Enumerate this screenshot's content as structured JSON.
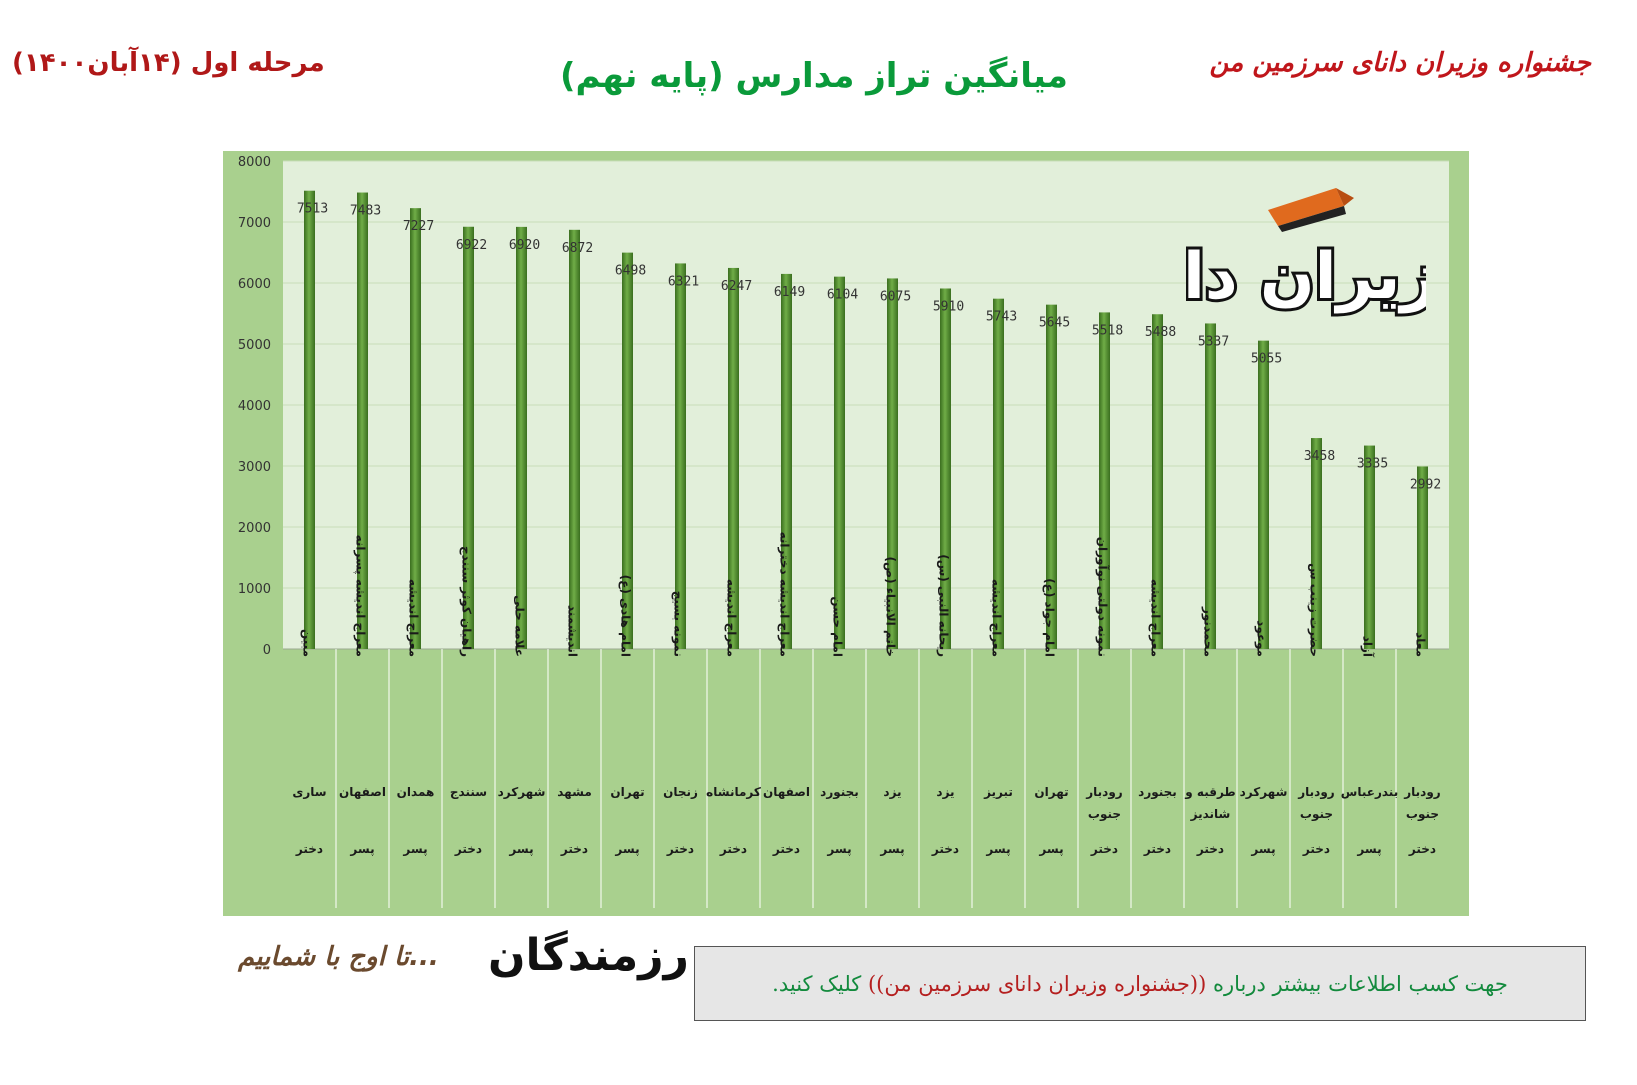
{
  "header": {
    "left": "مرحله اول (۱۴آبان۱۴۰۰)",
    "title": "میانگین تراز مدارس (پایه نهم)",
    "right": "جشنواره وزیران دانای سرزمین من"
  },
  "logo": {
    "text": "وزیران دانا",
    "icon": "book-mortarboard-icon"
  },
  "footer": {
    "slogan": "تا اوج با شماییم...",
    "brand": "رزمندگان",
    "info_pre": "جهت کسب اطلاعات بیشتر درباره",
    "info_link": "((جشنواره وزیران دانای سرزمین من))",
    "info_post": "کلیک کنید."
  },
  "colors": {
    "chart_bg": "#a9d08e",
    "plot_bg": "#e2efda",
    "bar_light": "#70ad47",
    "bar_dark": "#3a6e1f",
    "title_green": "#0a9a3a",
    "header_red": "#c0161b"
  },
  "chart_data": {
    "type": "bar",
    "ylim": [
      0,
      8000
    ],
    "yticks": [
      0,
      1000,
      2000,
      3000,
      4000,
      5000,
      6000,
      7000,
      8000
    ],
    "grid": true,
    "categories": [
      {
        "school": "مبین",
        "city": "ساری",
        "gender": "دختر"
      },
      {
        "school": "معراج اندیشه پسرانه",
        "city": "اصفهان",
        "gender": "پسر"
      },
      {
        "school": "معراج اندیشه",
        "city": "همدان",
        "gender": "پسر"
      },
      {
        "school": "راهیان کوثر سنندج",
        "city": "سنندج",
        "gender": "دختر"
      },
      {
        "school": "علامه حلی",
        "city": "شهرکرد",
        "gender": "پسر"
      },
      {
        "school": "اندیشمند",
        "city": "مشهد",
        "gender": "دختر"
      },
      {
        "school": "امام هادی (ع)",
        "city": "تهران",
        "gender": "پسر"
      },
      {
        "school": "نمونه بسیج",
        "city": "زنجان",
        "gender": "دختر"
      },
      {
        "school": "معراج اندیشه",
        "city": "کرمانشاه",
        "gender": "دختر"
      },
      {
        "school": "معراج اندیشه دخترانه",
        "city": "اصفهان",
        "gender": "دختر"
      },
      {
        "school": "امام حسن",
        "city": "بجنورد",
        "gender": "پسر"
      },
      {
        "school": "خاتم الانبیاء (ص)",
        "city": "یزد",
        "gender": "پسر"
      },
      {
        "school": "ریحانه النبی (س)",
        "city": "یزد",
        "gender": "دختر"
      },
      {
        "school": "معراج اندیشه",
        "city": "تبریز",
        "gender": "پسر"
      },
      {
        "school": "امام جواد (ع)",
        "city": "تهران",
        "gender": "پسر"
      },
      {
        "school": "نمونه دولتی نوآوران",
        "city": "رودبار جنوب",
        "gender": "دختر"
      },
      {
        "school": "معراج اندیشه",
        "city": "بجنورد",
        "gender": "دختر"
      },
      {
        "school": "محمدنور",
        "city": "طرقبه و شاندیز",
        "gender": "دختر"
      },
      {
        "school": "موعود",
        "city": "شهرکرد",
        "gender": "پسر"
      },
      {
        "school": "حضرت زینب س",
        "city": "رودبار جنوب",
        "gender": "دختر"
      },
      {
        "school": "آزاد",
        "city": "بندرعباس",
        "gender": "پسر"
      },
      {
        "school": "معاد",
        "city": "رودبار جنوب",
        "gender": "دختر"
      }
    ],
    "values": [
      7513,
      7483,
      7227,
      6922,
      6920,
      6872,
      6498,
      6321,
      6247,
      6149,
      6104,
      6075,
      5910,
      5743,
      5645,
      5518,
      5488,
      5337,
      5055,
      3458,
      3335,
      2992
    ]
  }
}
